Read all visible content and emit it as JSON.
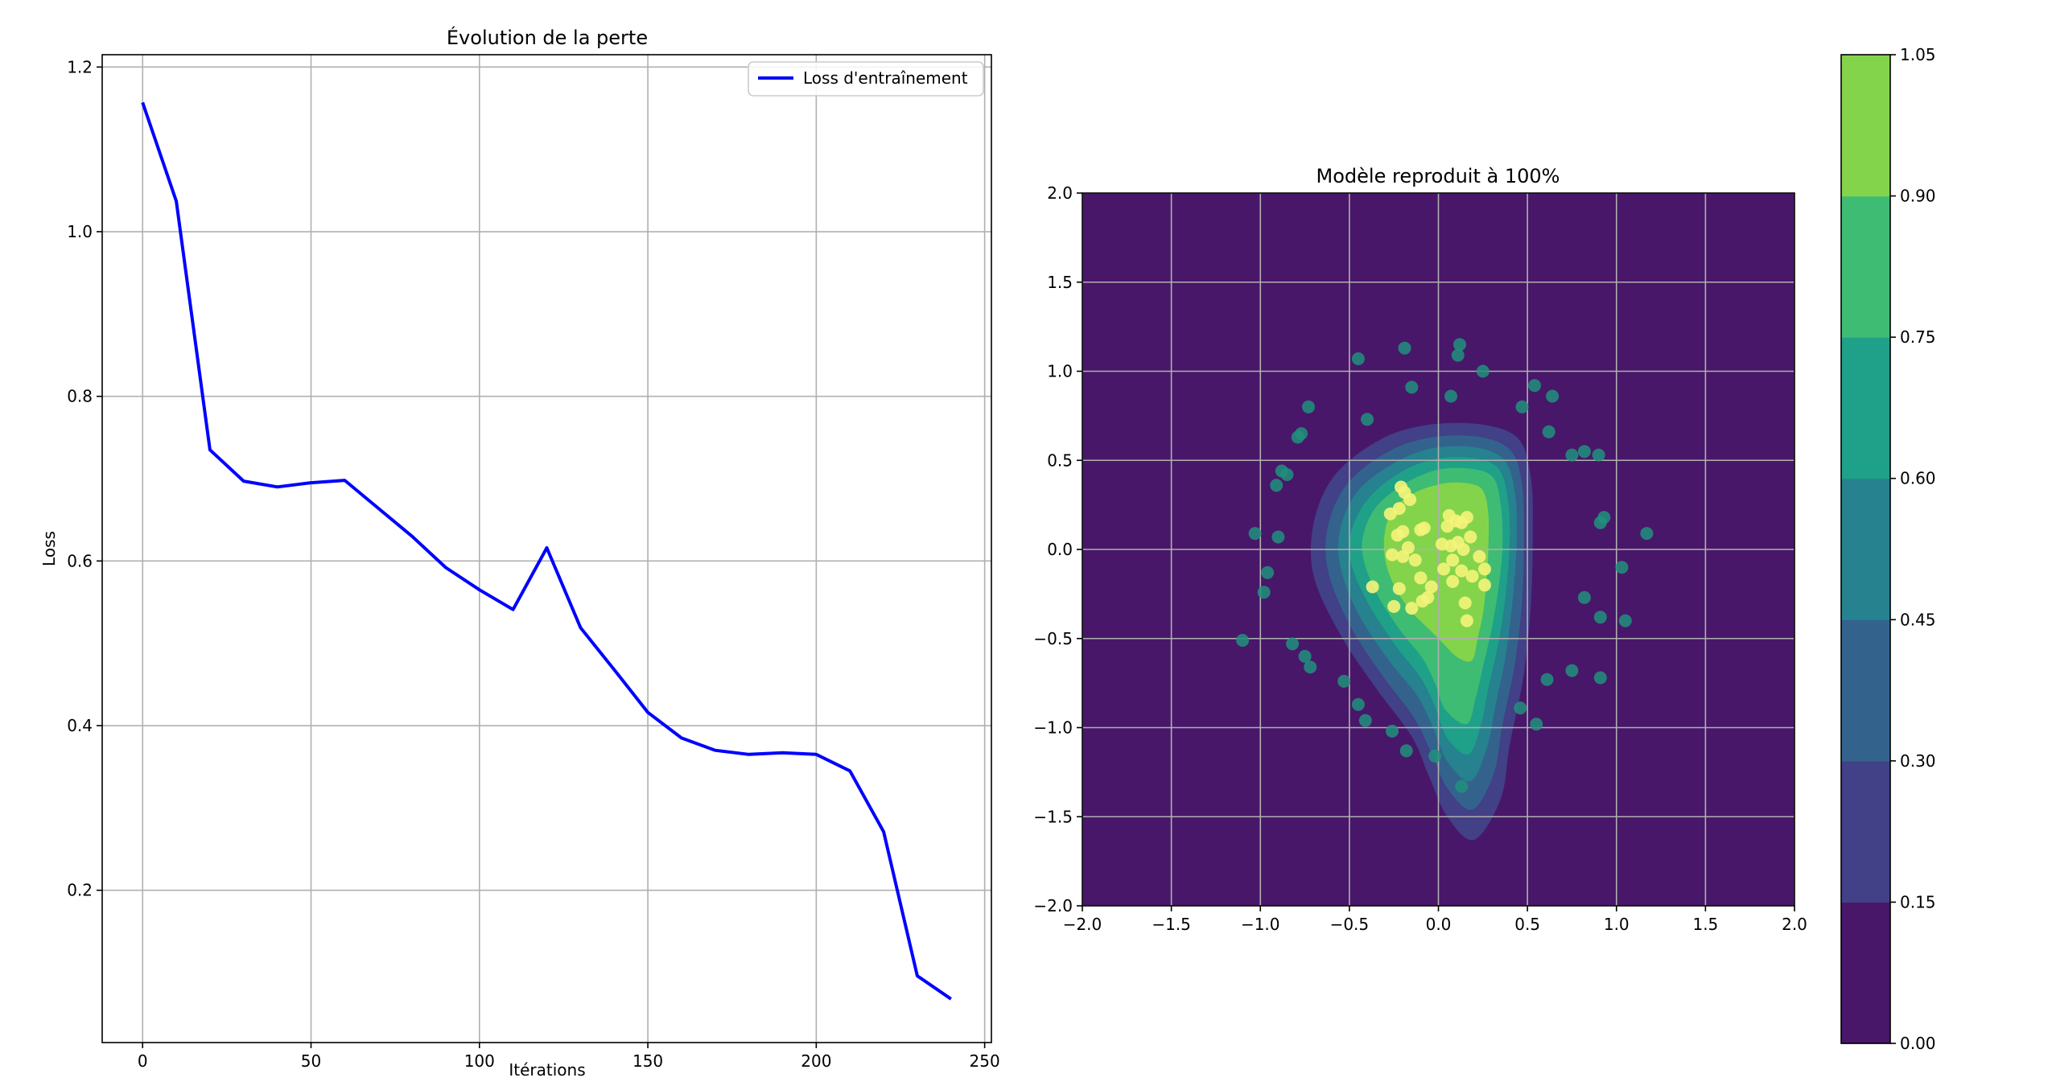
{
  "chart_data": [
    {
      "type": "line",
      "title": "Évolution de la perte",
      "xlabel": "Itérations",
      "ylabel": "Loss",
      "xlim": [
        -12,
        252
      ],
      "ylim": [
        0.015,
        1.215
      ],
      "x_ticks": [
        0,
        50,
        100,
        150,
        200,
        250
      ],
      "y_ticks": [
        0.2,
        0.4,
        0.6,
        0.8,
        1.0,
        1.2
      ],
      "grid": true,
      "legend": "top-right",
      "series": [
        {
          "name": "Loss d'entraînement",
          "color": "#0000ff",
          "x": [
            0,
            10,
            20,
            30,
            40,
            50,
            60,
            70,
            80,
            90,
            100,
            110,
            120,
            130,
            140,
            150,
            160,
            170,
            180,
            190,
            200,
            210,
            220,
            230,
            240
          ],
          "y": [
            1.157,
            1.037,
            0.735,
            0.697,
            0.69,
            0.695,
            0.698,
            0.664,
            0.63,
            0.592,
            0.565,
            0.541,
            0.616,
            0.519,
            0.468,
            0.416,
            0.385,
            0.37,
            0.365,
            0.367,
            0.365,
            0.345,
            0.271,
            0.096,
            0.068
          ]
        }
      ]
    },
    {
      "type": "heatmap",
      "subtype": "filled-contour-with-scatter",
      "title": "Modèle reproduit à 100%",
      "xlim": [
        -2.0,
        2.0
      ],
      "ylim": [
        -2.0,
        2.0
      ],
      "x_ticks": [
        "−2.0",
        "−1.5",
        "−1.0",
        "−0.5",
        "0.0",
        "0.5",
        "1.0",
        "1.5",
        "2.0"
      ],
      "y_ticks": [
        "−2.0",
        "−1.5",
        "−1.0",
        "−0.5",
        "0.0",
        "0.5",
        "1.0",
        "1.5",
        "2.0"
      ],
      "grid": true,
      "colorbar": {
        "levels": [
          0.0,
          0.15,
          0.3,
          0.45,
          0.6,
          0.75,
          0.9,
          1.05
        ],
        "tick_labels": [
          "0.00",
          "0.15",
          "0.30",
          "0.45",
          "0.60",
          "0.75",
          "0.90",
          "1.05"
        ],
        "colors": [
          "#481769",
          "#424086",
          "#33638d",
          "#26828e",
          "#1fa088",
          "#3fbc73",
          "#84d44b",
          "#d8e219"
        ]
      },
      "contour_levels": [
        {
          "level": 0.15,
          "points": [
            [
              0.2,
              -1.63
            ],
            [
              0.05,
              -1.5
            ],
            [
              -0.05,
              -1.28
            ],
            [
              -0.15,
              -1.05
            ],
            [
              -0.35,
              -0.78
            ],
            [
              -0.55,
              -0.48
            ],
            [
              -0.7,
              -0.15
            ],
            [
              -0.7,
              0.15
            ],
            [
              -0.58,
              0.42
            ],
            [
              -0.32,
              0.62
            ],
            [
              -0.05,
              0.7
            ],
            [
              0.25,
              0.7
            ],
            [
              0.45,
              0.62
            ],
            [
              0.52,
              0.4
            ],
            [
              0.53,
              0.1
            ],
            [
              0.52,
              -0.3
            ],
            [
              0.48,
              -0.7
            ],
            [
              0.4,
              -1.1
            ],
            [
              0.35,
              -1.4
            ]
          ]
        },
        {
          "level": 0.3,
          "points": [
            [
              0.19,
              -1.46
            ],
            [
              0.05,
              -1.34
            ],
            [
              -0.04,
              -1.14
            ],
            [
              -0.14,
              -0.94
            ],
            [
              -0.32,
              -0.7
            ],
            [
              -0.5,
              -0.42
            ],
            [
              -0.62,
              -0.12
            ],
            [
              -0.62,
              0.13
            ],
            [
              -0.51,
              0.37
            ],
            [
              -0.28,
              0.55
            ],
            [
              -0.03,
              0.63
            ],
            [
              0.24,
              0.63
            ],
            [
              0.41,
              0.55
            ],
            [
              0.47,
              0.36
            ],
            [
              0.48,
              0.08
            ],
            [
              0.47,
              -0.28
            ],
            [
              0.43,
              -0.64
            ],
            [
              0.36,
              -0.98
            ],
            [
              0.31,
              -1.26
            ]
          ]
        },
        {
          "level": 0.45,
          "points": [
            [
              0.18,
              -1.3
            ],
            [
              0.05,
              -1.19
            ],
            [
              -0.03,
              -1.0
            ],
            [
              -0.12,
              -0.82
            ],
            [
              -0.28,
              -0.62
            ],
            [
              -0.45,
              -0.36
            ],
            [
              -0.55,
              -0.1
            ],
            [
              -0.55,
              0.12
            ],
            [
              -0.45,
              0.33
            ],
            [
              -0.24,
              0.49
            ],
            [
              -0.02,
              0.57
            ],
            [
              0.22,
              0.57
            ],
            [
              0.37,
              0.5
            ],
            [
              0.43,
              0.32
            ],
            [
              0.44,
              0.06
            ],
            [
              0.42,
              -0.25
            ],
            [
              0.38,
              -0.58
            ],
            [
              0.32,
              -0.88
            ],
            [
              0.27,
              -1.12
            ]
          ]
        },
        {
          "level": 0.6,
          "points": [
            [
              0.17,
              -1.15
            ],
            [
              0.05,
              -1.06
            ],
            [
              -0.02,
              -0.88
            ],
            [
              -0.1,
              -0.72
            ],
            [
              -0.24,
              -0.54
            ],
            [
              -0.39,
              -0.31
            ],
            [
              -0.49,
              -0.08
            ],
            [
              -0.49,
              0.1
            ],
            [
              -0.39,
              0.29
            ],
            [
              -0.2,
              0.44
            ],
            [
              0.0,
              0.51
            ],
            [
              0.21,
              0.51
            ],
            [
              0.34,
              0.45
            ],
            [
              0.39,
              0.28
            ],
            [
              0.4,
              0.04
            ],
            [
              0.38,
              -0.23
            ],
            [
              0.34,
              -0.51
            ],
            [
              0.28,
              -0.78
            ],
            [
              0.24,
              -0.98
            ]
          ]
        },
        {
          "level": 0.75,
          "points": [
            [
              0.16,
              -0.98
            ],
            [
              0.04,
              -0.9
            ],
            [
              -0.02,
              -0.75
            ],
            [
              -0.09,
              -0.61
            ],
            [
              -0.21,
              -0.46
            ],
            [
              -0.34,
              -0.26
            ],
            [
              -0.42,
              -0.06
            ],
            [
              -0.42,
              0.09
            ],
            [
              -0.34,
              0.25
            ],
            [
              -0.17,
              0.38
            ],
            [
              0.01,
              0.45
            ],
            [
              0.2,
              0.45
            ],
            [
              0.31,
              0.4
            ],
            [
              0.35,
              0.25
            ],
            [
              0.36,
              0.03
            ],
            [
              0.34,
              -0.2
            ],
            [
              0.3,
              -0.44
            ],
            [
              0.25,
              -0.66
            ],
            [
              0.21,
              -0.83
            ]
          ]
        },
        {
          "level": 0.9,
          "points": [
            [
              0.17,
              -0.63
            ],
            [
              0.1,
              -0.6
            ],
            [
              0.02,
              -0.52
            ],
            [
              -0.06,
              -0.44
            ],
            [
              -0.16,
              -0.34
            ],
            [
              -0.25,
              -0.2
            ],
            [
              -0.3,
              -0.05
            ],
            [
              -0.3,
              0.1
            ],
            [
              -0.25,
              0.23
            ],
            [
              -0.13,
              0.32
            ],
            [
              0.03,
              0.37
            ],
            [
              0.17,
              0.37
            ],
            [
              0.25,
              0.33
            ],
            [
              0.28,
              0.2
            ],
            [
              0.28,
              0.0
            ],
            [
              0.27,
              -0.18
            ],
            [
              0.25,
              -0.36
            ],
            [
              0.22,
              -0.5
            ],
            [
              0.2,
              -0.6
            ]
          ]
        }
      ],
      "scatter_outer": {
        "color": "#21917e",
        "points": [
          [
            -0.45,
            1.07
          ],
          [
            -0.19,
            1.13
          ],
          [
            0.12,
            1.15
          ],
          [
            0.11,
            1.09
          ],
          [
            0.25,
            1.0
          ],
          [
            -0.15,
            0.91
          ],
          [
            0.07,
            0.86
          ],
          [
            0.54,
            0.92
          ],
          [
            0.64,
            0.86
          ],
          [
            0.47,
            0.8
          ],
          [
            -0.73,
            0.8
          ],
          [
            -0.4,
            0.73
          ],
          [
            -0.77,
            0.65
          ],
          [
            -0.79,
            0.63
          ],
          [
            0.62,
            0.66
          ],
          [
            0.75,
            0.53
          ],
          [
            0.82,
            0.55
          ],
          [
            0.9,
            0.53
          ],
          [
            -0.88,
            0.44
          ],
          [
            -0.85,
            0.42
          ],
          [
            -0.91,
            0.36
          ],
          [
            0.93,
            0.18
          ],
          [
            0.91,
            0.15
          ],
          [
            -1.03,
            0.09
          ],
          [
            -0.9,
            0.07
          ],
          [
            1.17,
            0.09
          ],
          [
            -0.96,
            -0.13
          ],
          [
            1.03,
            -0.1
          ],
          [
            -0.98,
            -0.24
          ],
          [
            0.82,
            -0.27
          ],
          [
            0.91,
            -0.38
          ],
          [
            1.05,
            -0.4
          ],
          [
            -1.1,
            -0.51
          ],
          [
            -0.82,
            -0.53
          ],
          [
            -0.75,
            -0.6
          ],
          [
            -0.72,
            -0.66
          ],
          [
            -0.53,
            -0.74
          ],
          [
            0.61,
            -0.73
          ],
          [
            0.75,
            -0.68
          ],
          [
            0.91,
            -0.72
          ],
          [
            -0.45,
            -0.87
          ],
          [
            0.46,
            -0.89
          ],
          [
            -0.41,
            -0.96
          ],
          [
            0.55,
            -0.98
          ],
          [
            -0.26,
            -1.02
          ],
          [
            -0.18,
            -1.13
          ],
          [
            -0.02,
            -1.16
          ],
          [
            0.13,
            -1.33
          ]
        ]
      },
      "scatter_inner": {
        "color": "#f4f47a",
        "points": [
          [
            -0.21,
            0.35
          ],
          [
            -0.19,
            0.32
          ],
          [
            -0.16,
            0.28
          ],
          [
            -0.22,
            0.23
          ],
          [
            -0.27,
            0.2
          ],
          [
            0.06,
            0.19
          ],
          [
            0.16,
            0.18
          ],
          [
            0.1,
            0.16
          ],
          [
            0.13,
            0.15
          ],
          [
            0.05,
            0.13
          ],
          [
            -0.08,
            0.12
          ],
          [
            -0.1,
            0.11
          ],
          [
            -0.2,
            0.1
          ],
          [
            -0.23,
            0.08
          ],
          [
            0.18,
            0.07
          ],
          [
            0.11,
            0.04
          ],
          [
            0.02,
            0.03
          ],
          [
            0.07,
            0.02
          ],
          [
            -0.17,
            0.01
          ],
          [
            0.14,
            0.0
          ],
          [
            -0.2,
            -0.04
          ],
          [
            -0.13,
            -0.06
          ],
          [
            0.23,
            -0.04
          ],
          [
            -0.26,
            -0.03
          ],
          [
            0.08,
            -0.06
          ],
          [
            0.26,
            -0.11
          ],
          [
            0.03,
            -0.11
          ],
          [
            0.13,
            -0.12
          ],
          [
            -0.1,
            -0.16
          ],
          [
            0.19,
            -0.15
          ],
          [
            0.08,
            -0.18
          ],
          [
            -0.37,
            -0.21
          ],
          [
            -0.22,
            -0.22
          ],
          [
            -0.04,
            -0.21
          ],
          [
            0.26,
            -0.2
          ],
          [
            -0.06,
            -0.27
          ],
          [
            -0.09,
            -0.29
          ],
          [
            0.15,
            -0.3
          ],
          [
            -0.25,
            -0.32
          ],
          [
            -0.15,
            -0.33
          ],
          [
            0.16,
            -0.4
          ]
        ]
      }
    }
  ]
}
